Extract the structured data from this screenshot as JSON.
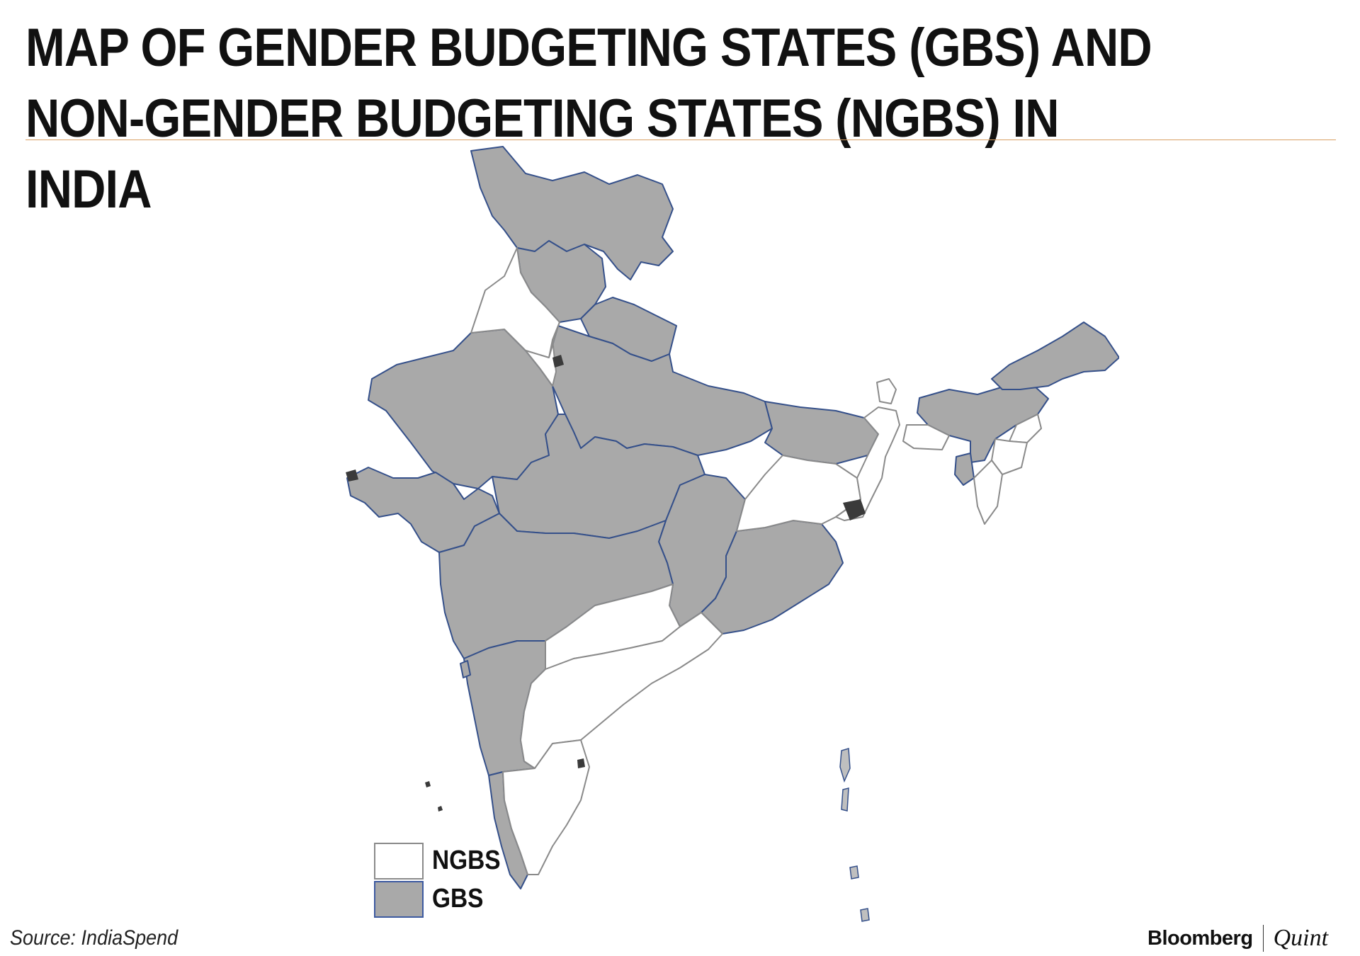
{
  "header": {
    "title_line1": "MAP OF GENDER BUDGETING STATES (GBS) AND",
    "title_line2": "NON-GENDER BUDGETING STATES (NGBS) IN INDIA"
  },
  "legend": [
    {
      "key": "ngbs",
      "label": "NGBS",
      "fill": "#ffffff",
      "border": "#8a8a8a"
    },
    {
      "key": "gbs",
      "label": "GBS",
      "fill": "#a9a9a9",
      "border": "#3d5aa0"
    }
  ],
  "colors": {
    "gbs_fill": "#a9a9a9",
    "ngbs_fill": "#ffffff",
    "border": "#35508a",
    "union_territory": "#3a3a3a",
    "rule": "#d9a064"
  },
  "footer": {
    "source": "Source: IndiaSpend",
    "brand_primary": "Bloomberg",
    "brand_secondary": "Quint"
  }
}
